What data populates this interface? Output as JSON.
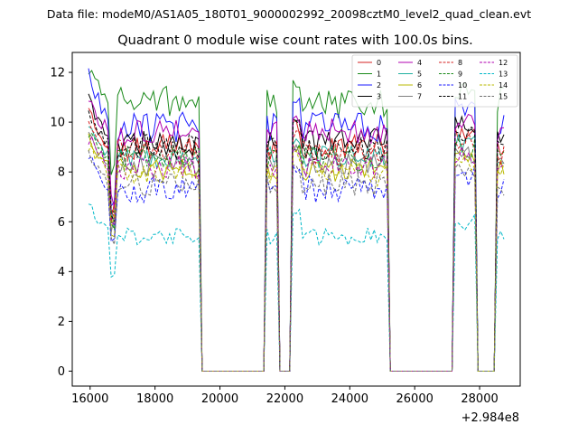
{
  "figure_caption": "Data file: modeM0/AS1A05_180T01_9000002992_20098cztM0_level2_quad_clean.evt",
  "chart_data": {
    "type": "line",
    "title": "Quadrant 0 module wise count rates with 100.0s bins.",
    "xlabel": "",
    "ylabel": "",
    "x_offset_label": "+2.984e8",
    "xlim": [
      15450,
      29250
    ],
    "ylim": [
      -0.6,
      12.8
    ],
    "xticks": [
      16000,
      18000,
      20000,
      22000,
      24000,
      26000,
      28000
    ],
    "yticks": [
      0,
      2,
      4,
      6,
      8,
      10,
      12
    ],
    "legend_loc": "upper right",
    "legend_columns": 4,
    "segments": [
      [
        15950,
        19450
      ],
      [
        21450,
        21850
      ],
      [
        22200,
        25250
      ],
      [
        27200,
        27950
      ],
      [
        28550,
        28800
      ]
    ],
    "gaps": [
      [
        19450,
        21450
      ],
      [
        21850,
        22200
      ],
      [
        25250,
        27200
      ],
      [
        27950,
        28550
      ]
    ],
    "series": [
      {
        "name": "0",
        "color": "#d62020",
        "style": "solid",
        "level": 9.0,
        "start": 10.3,
        "variation": 0.45
      },
      {
        "name": "1",
        "color": "#1a8a1a",
        "style": "solid",
        "level": 10.8,
        "start": 12.2,
        "variation": 0.55
      },
      {
        "name": "2",
        "color": "#1a1aff",
        "style": "solid",
        "level": 9.8,
        "start": 11.9,
        "variation": 0.5
      },
      {
        "name": "3",
        "color": "#000000",
        "style": "solid",
        "level": 9.2,
        "start": 10.9,
        "variation": 0.45
      },
      {
        "name": "4",
        "color": "#b000b0",
        "style": "solid",
        "level": 9.6,
        "start": 10.7,
        "variation": 0.45
      },
      {
        "name": "5",
        "color": "#20b0a0",
        "style": "solid",
        "level": 8.6,
        "start": 9.9,
        "variation": 0.4
      },
      {
        "name": "6",
        "color": "#b8b800",
        "style": "solid",
        "level": 8.1,
        "start": 9.3,
        "variation": 0.4
      },
      {
        "name": "7",
        "color": "#808080",
        "style": "solid",
        "level": 8.3,
        "start": 9.4,
        "variation": 0.4
      },
      {
        "name": "8",
        "color": "#d62020",
        "style": "dashed",
        "level": 8.8,
        "start": 9.9,
        "variation": 0.45
      },
      {
        "name": "9",
        "color": "#1a8a1a",
        "style": "dashed",
        "level": 8.5,
        "start": 9.6,
        "variation": 0.45
      },
      {
        "name": "10",
        "color": "#1a1aff",
        "style": "dashed",
        "level": 7.3,
        "start": 8.6,
        "variation": 0.45
      },
      {
        "name": "11",
        "color": "#000000",
        "style": "dashed",
        "level": 9.0,
        "start": 10.4,
        "variation": 0.45
      },
      {
        "name": "12",
        "color": "#b000b0",
        "style": "dashed",
        "level": 8.2,
        "start": 9.3,
        "variation": 0.4
      },
      {
        "name": "13",
        "color": "#00b8c8",
        "style": "dashed",
        "level": 5.4,
        "start": 6.8,
        "variation": 0.3
      },
      {
        "name": "14",
        "color": "#b8b800",
        "style": "dashed",
        "level": 7.9,
        "start": 9.1,
        "variation": 0.4
      },
      {
        "name": "15",
        "color": "#707070",
        "style": "dashed",
        "level": 7.5,
        "start": 8.8,
        "variation": 0.4
      }
    ]
  }
}
